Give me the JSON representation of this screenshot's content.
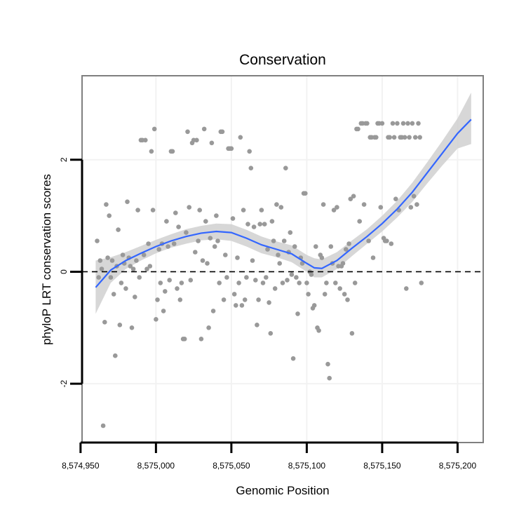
{
  "chart_data": {
    "type": "scatter",
    "title": "Conservation",
    "xlabel": "Genomic Position",
    "ylabel": "phyloP LRT conservation scores",
    "xlim": [
      8574951,
      8575217
    ],
    "ylim": [
      -3.05,
      3.5
    ],
    "x_ticks": [
      8574950,
      8575000,
      8575050,
      8575100,
      8575150,
      8575200
    ],
    "x_tick_labels": [
      "8,574,950",
      "8,575,000",
      "8,575,050",
      "8,575,100",
      "8,575,150",
      "8,575,200"
    ],
    "y_ticks": [
      -2,
      0,
      2
    ],
    "y_tick_labels": [
      "-2",
      "0",
      "2"
    ],
    "reference_line": {
      "y": 0,
      "style": "dashed"
    },
    "grid": true,
    "colors": {
      "points": "#999999",
      "smooth_line": "#3366ff",
      "ribbon": "#d0d0d0",
      "panel_border": "#7f7f7f",
      "grid": "#f2f2f2"
    },
    "points": [
      [
        8574961,
        0.55
      ],
      [
        8574962,
        -0.1
      ],
      [
        8574963,
        0.2
      ],
      [
        8574964,
        0.05
      ],
      [
        8574965,
        -2.75
      ],
      [
        8574966,
        -0.9
      ],
      [
        8574967,
        1.2
      ],
      [
        8574968,
        0.25
      ],
      [
        8574969,
        1.0
      ],
      [
        8574970,
        -0.1
      ],
      [
        8574971,
        0.2
      ],
      [
        8574972,
        -0.4
      ],
      [
        8574973,
        -1.5
      ],
      [
        8574974,
        0.1
      ],
      [
        8574975,
        0.75
      ],
      [
        8574976,
        -0.95
      ],
      [
        8574977,
        -0.2
      ],
      [
        8574978,
        0.3
      ],
      [
        8574979,
        0.15
      ],
      [
        8574980,
        -0.3
      ],
      [
        8574981,
        1.25
      ],
      [
        8574982,
        0.25
      ],
      [
        8574983,
        0.1
      ],
      [
        8574984,
        -1.0
      ],
      [
        8574985,
        0.05
      ],
      [
        8574986,
        -0.45
      ],
      [
        8574987,
        0.2
      ],
      [
        8574988,
        1.1
      ],
      [
        8574989,
        -0.1
      ],
      [
        8574990,
        2.35
      ],
      [
        8574991,
        2.35
      ],
      [
        8574992,
        0.3
      ],
      [
        8574993,
        2.35
      ],
      [
        8574994,
        0.05
      ],
      [
        8574995,
        0.5
      ],
      [
        8574996,
        0.1
      ],
      [
        8574997,
        2.15
      ],
      [
        8574998,
        1.1
      ],
      [
        8574999,
        2.55
      ],
      [
        8575000,
        -0.85
      ],
      [
        8575001,
        -0.5
      ],
      [
        8575002,
        0.4
      ],
      [
        8575003,
        -0.2
      ],
      [
        8575004,
        0.5
      ],
      [
        8575005,
        -0.7
      ],
      [
        8575006,
        -0.35
      ],
      [
        8575007,
        0.9
      ],
      [
        8575008,
        0.45
      ],
      [
        8575009,
        -0.15
      ],
      [
        8575010,
        2.15
      ],
      [
        8575011,
        2.15
      ],
      [
        8575012,
        0.5
      ],
      [
        8575013,
        1.05
      ],
      [
        8575014,
        -0.3
      ],
      [
        8575015,
        0.8
      ],
      [
        8575016,
        -0.5
      ],
      [
        8575017,
        -0.2
      ],
      [
        8575018,
        -1.2
      ],
      [
        8575019,
        -1.2
      ],
      [
        8575020,
        0.7
      ],
      [
        8575021,
        2.5
      ],
      [
        8575022,
        1.15
      ],
      [
        8575023,
        -0.15
      ],
      [
        8575024,
        2.3
      ],
      [
        8575025,
        2.35
      ],
      [
        8575026,
        0.35
      ],
      [
        8575027,
        2.35
      ],
      [
        8575028,
        0.55
      ],
      [
        8575029,
        1.1
      ],
      [
        8575030,
        -1.2
      ],
      [
        8575031,
        0.2
      ],
      [
        8575032,
        2.55
      ],
      [
        8575033,
        0.9
      ],
      [
        8575034,
        0.15
      ],
      [
        8575035,
        -1.0
      ],
      [
        8575036,
        0.6
      ],
      [
        8575037,
        2.3
      ],
      [
        8575038,
        -0.7
      ],
      [
        8575039,
        0.45
      ],
      [
        8575040,
        1.0
      ],
      [
        8575041,
        0.55
      ],
      [
        8575042,
        -0.2
      ],
      [
        8575043,
        2.5
      ],
      [
        8575044,
        2.5
      ],
      [
        8575045,
        -0.5
      ],
      [
        8575046,
        0.3
      ],
      [
        8575047,
        -0.1
      ],
      [
        8575048,
        2.2
      ],
      [
        8575049,
        2.2
      ],
      [
        8575050,
        2.2
      ],
      [
        8575051,
        0.95
      ],
      [
        8575052,
        -0.4
      ],
      [
        8575053,
        -0.6
      ],
      [
        8575054,
        0.25
      ],
      [
        8575055,
        -0.2
      ],
      [
        8575056,
        2.4
      ],
      [
        8575057,
        -0.6
      ],
      [
        8575058,
        1.1
      ],
      [
        8575059,
        -0.5
      ],
      [
        8575060,
        -0.1
      ],
      [
        8575061,
        0.85
      ],
      [
        8575062,
        2.15
      ],
      [
        8575063,
        1.85
      ],
      [
        8575064,
        0.2
      ],
      [
        8575065,
        0.8
      ],
      [
        8575066,
        -0.15
      ],
      [
        8575067,
        -0.95
      ],
      [
        8575068,
        -0.5
      ],
      [
        8575069,
        0.85
      ],
      [
        8575070,
        1.1
      ],
      [
        8575071,
        -0.2
      ],
      [
        8575072,
        0.85
      ],
      [
        8575073,
        -0.1
      ],
      [
        8575074,
        0.4
      ],
      [
        8575075,
        -0.55
      ],
      [
        8575076,
        -1.1
      ],
      [
        8575077,
        0.9
      ],
      [
        8575078,
        0.55
      ],
      [
        8575079,
        -0.3
      ],
      [
        8575080,
        1.2
      ],
      [
        8575081,
        0.3
      ],
      [
        8575082,
        0.15
      ],
      [
        8575083,
        1.15
      ],
      [
        8575084,
        -0.2
      ],
      [
        8575085,
        0.55
      ],
      [
        8575086,
        1.85
      ],
      [
        8575087,
        -0.15
      ],
      [
        8575088,
        0.35
      ],
      [
        8575089,
        0.7
      ],
      [
        8575090,
        -0.05
      ],
      [
        8575091,
        -1.55
      ],
      [
        8575092,
        0.45
      ],
      [
        8575093,
        -0.1
      ],
      [
        8575094,
        -0.75
      ],
      [
        8575095,
        -0.2
      ],
      [
        8575096,
        0.25
      ],
      [
        8575097,
        0.15
      ],
      [
        8575098,
        1.4
      ],
      [
        8575099,
        1.4
      ],
      [
        8575100,
        -0.2
      ],
      [
        8575101,
        -0.4
      ],
      [
        8575102,
        0.0
      ],
      [
        8575103,
        -0.05
      ],
      [
        8575104,
        -0.65
      ],
      [
        8575105,
        -0.6
      ],
      [
        8575106,
        0.45
      ],
      [
        8575107,
        -1.0
      ],
      [
        8575108,
        -1.05
      ],
      [
        8575109,
        0.3
      ],
      [
        8575110,
        0.25
      ],
      [
        8575111,
        1.2
      ],
      [
        8575112,
        -0.4
      ],
      [
        8575113,
        -0.2
      ],
      [
        8575114,
        -1.65
      ],
      [
        8575115,
        -1.9
      ],
      [
        8575116,
        0.45
      ],
      [
        8575117,
        0.15
      ],
      [
        8575118,
        1.1
      ],
      [
        8575119,
        -0.2
      ],
      [
        8575120,
        1.15
      ],
      [
        8575121,
        0.1
      ],
      [
        8575122,
        -0.3
      ],
      [
        8575123,
        0.1
      ],
      [
        8575124,
        0.15
      ],
      [
        8575125,
        -0.4
      ],
      [
        8575126,
        0.4
      ],
      [
        8575127,
        -0.5
      ],
      [
        8575128,
        0.5
      ],
      [
        8575129,
        1.3
      ],
      [
        8575130,
        -1.1
      ],
      [
        8575131,
        1.35
      ],
      [
        8575132,
        -0.2
      ],
      [
        8575133,
        2.55
      ],
      [
        8575134,
        2.55
      ],
      [
        8575135,
        0.9
      ],
      [
        8575136,
        2.65
      ],
      [
        8575137,
        2.65
      ],
      [
        8575138,
        1.2
      ],
      [
        8575139,
        2.65
      ],
      [
        8575140,
        2.65
      ],
      [
        8575141,
        0.55
      ],
      [
        8575142,
        2.4
      ],
      [
        8575143,
        2.4
      ],
      [
        8575144,
        0.25
      ],
      [
        8575145,
        2.4
      ],
      [
        8575146,
        2.4
      ],
      [
        8575147,
        2.65
      ],
      [
        8575148,
        2.65
      ],
      [
        8575149,
        1.15
      ],
      [
        8575150,
        2.65
      ],
      [
        8575151,
        0.6
      ],
      [
        8575152,
        0.55
      ],
      [
        8575153,
        0.55
      ],
      [
        8575154,
        2.4
      ],
      [
        8575155,
        2.4
      ],
      [
        8575156,
        0.5
      ],
      [
        8575157,
        2.65
      ],
      [
        8575158,
        2.4
      ],
      [
        8575159,
        1.3
      ],
      [
        8575160,
        2.65
      ],
      [
        8575161,
        1.1
      ],
      [
        8575162,
        2.4
      ],
      [
        8575163,
        2.4
      ],
      [
        8575164,
        2.65
      ],
      [
        8575165,
        2.4
      ],
      [
        8575166,
        -0.3
      ],
      [
        8575167,
        2.65
      ],
      [
        8575168,
        2.4
      ],
      [
        8575169,
        1.15
      ],
      [
        8575170,
        2.65
      ],
      [
        8575171,
        1.35
      ],
      [
        8575172,
        2.4
      ],
      [
        8575173,
        1.2
      ],
      [
        8575174,
        2.65
      ],
      [
        8575175,
        2.4
      ],
      [
        8575176,
        -0.2
      ]
    ],
    "smooth_fit": {
      "x": [
        8574960,
        8574970,
        8574980,
        8574990,
        8575000,
        8575010,
        8575020,
        8575030,
        8575040,
        8575050,
        8575060,
        8575070,
        8575080,
        8575090,
        8575100,
        8575105,
        8575110,
        8575120,
        8575130,
        8575140,
        8575150,
        8575160,
        8575170,
        8575180,
        8575190,
        8575200,
        8575209
      ],
      "y": [
        -0.28,
        0.03,
        0.2,
        0.33,
        0.45,
        0.55,
        0.63,
        0.69,
        0.72,
        0.7,
        0.6,
        0.48,
        0.4,
        0.32,
        0.15,
        0.07,
        0.06,
        0.2,
        0.42,
        0.63,
        0.86,
        1.12,
        1.42,
        1.77,
        2.12,
        2.47,
        2.72
      ],
      "lower": [
        -0.75,
        -0.2,
        0.05,
        0.2,
        0.33,
        0.43,
        0.5,
        0.56,
        0.58,
        0.55,
        0.45,
        0.33,
        0.26,
        0.17,
        0.0,
        -0.1,
        -0.1,
        0.05,
        0.28,
        0.5,
        0.72,
        0.97,
        1.25,
        1.58,
        1.9,
        2.2,
        2.28
      ],
      "upper": [
        0.2,
        0.26,
        0.35,
        0.46,
        0.57,
        0.67,
        0.76,
        0.82,
        0.86,
        0.85,
        0.75,
        0.63,
        0.54,
        0.47,
        0.3,
        0.24,
        0.22,
        0.35,
        0.56,
        0.76,
        1.0,
        1.27,
        1.59,
        1.96,
        2.34,
        2.74,
        3.2
      ]
    }
  }
}
